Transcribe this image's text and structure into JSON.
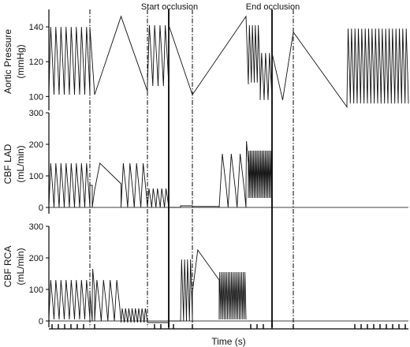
{
  "chart_data": {
    "type": "line",
    "xlabel": "Time (s)",
    "annotations": [
      "Start occlusion",
      "End occlusion"
    ],
    "panels": [
      {
        "ylabel": [
          "Aortic Pressure",
          "(mmHg)"
        ],
        "ylim": [
          92,
          150
        ],
        "yticks": [
          100,
          120,
          140
        ],
        "baseline": null,
        "segments": [
          {
            "kind": "osc",
            "n": 8,
            "lo": 101,
            "hi": 140
          },
          {
            "kind": "fall",
            "from": 140,
            "to": 101
          },
          {
            "kind": "rise",
            "from": 101,
            "to": 146
          },
          {
            "kind": "fall",
            "from": 146,
            "to": 103
          },
          {
            "kind": "osc",
            "n": 4,
            "lo": 106,
            "hi": 141
          },
          {
            "kind": "fall",
            "from": 141,
            "to": 101
          },
          {
            "kind": "rise",
            "from": 101,
            "to": 146
          },
          {
            "kind": "fall",
            "from": 146,
            "to": 107
          },
          {
            "kind": "osc",
            "n": 4,
            "lo": 108,
            "hi": 141
          },
          {
            "kind": "osc",
            "n": 3,
            "lo": 98,
            "hi": 125
          },
          {
            "kind": "fall",
            "from": 125,
            "to": 98
          },
          {
            "kind": "rise",
            "from": 98,
            "to": 137
          },
          {
            "kind": "fall",
            "from": 137,
            "to": 94
          },
          {
            "kind": "osc",
            "n": 18,
            "lo": 96,
            "hi": 139
          }
        ]
      },
      {
        "ylabel": [
          "CBF LAD",
          "(mL/min)"
        ],
        "ylim": [
          -20,
          300
        ],
        "yticks": [
          0,
          100,
          200,
          300
        ],
        "baseline": 0,
        "segments": [
          {
            "kind": "osc",
            "n": 8,
            "lo": 0,
            "hi": 140
          },
          {
            "kind": "flat",
            "v": 70
          },
          {
            "kind": "step",
            "from": 0,
            "to": 55
          },
          {
            "kind": "bump",
            "from": 55,
            "peak": 140,
            "to": 75
          },
          {
            "kind": "osc",
            "n": 4,
            "lo": 0,
            "hi": 140
          },
          {
            "kind": "osc",
            "n": 5,
            "lo": 0,
            "hi": 60
          },
          {
            "kind": "flat",
            "v": 0
          },
          {
            "kind": "flat",
            "v": 5
          },
          {
            "kind": "flat",
            "v": 3
          },
          {
            "kind": "osc",
            "n": 3,
            "lo": 0,
            "hi": 170
          },
          {
            "kind": "bump",
            "from": 70,
            "peak": 210,
            "to": 140
          },
          {
            "kind": "osc",
            "n": 16,
            "lo": 30,
            "hi": 180
          }
        ]
      },
      {
        "ylabel": [
          "CBF RCA",
          "(mL/min)"
        ],
        "ylim": [
          -20,
          300
        ],
        "yticks": [
          0,
          100,
          200,
          300
        ],
        "baseline": 0,
        "segments": [
          {
            "kind": "osc",
            "n": 8,
            "lo": 5,
            "hi": 130
          },
          {
            "kind": "step",
            "from": 90,
            "to": 0
          },
          {
            "kind": "bump",
            "from": 80,
            "peak": 165,
            "to": 95
          },
          {
            "kind": "osc",
            "n": 4,
            "lo": 0,
            "hi": 130
          },
          {
            "kind": "osc",
            "n": 8,
            "lo": -5,
            "hi": 40
          },
          {
            "kind": "flat",
            "v": -5
          },
          {
            "kind": "flat",
            "v": 0
          },
          {
            "kind": "osc",
            "n": 4,
            "lo": 0,
            "hi": 195
          },
          {
            "kind": "bump",
            "from": 90,
            "peak": 225,
            "to": 130
          },
          {
            "kind": "osc",
            "n": 16,
            "lo": 5,
            "hi": 155
          }
        ]
      }
    ]
  }
}
